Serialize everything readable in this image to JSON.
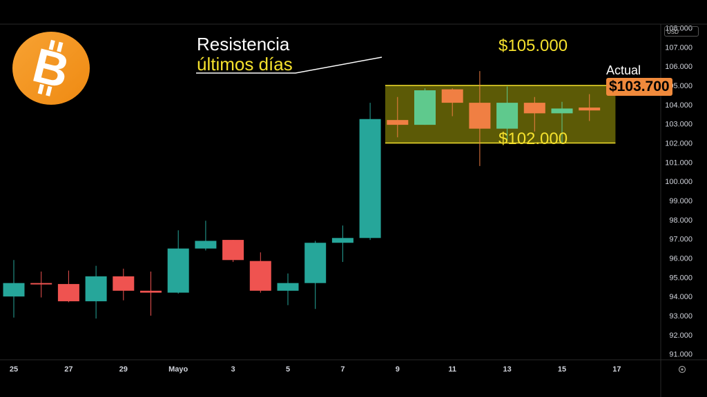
{
  "annotation": {
    "line1": "Resistencia",
    "line2": "últimos días"
  },
  "levels": {
    "upper_label": "$105.000",
    "lower_label": "$102.000",
    "upper": 105000,
    "lower": 102000
  },
  "current": {
    "label": "Actual",
    "value_label": "$103.700",
    "value": 103700
  },
  "currency_selector": "USD",
  "logo": "bitcoin-icon",
  "settings_icon": "gear-icon",
  "colors": {
    "up": "#26a69a",
    "down": "#ef5350",
    "up_light": "#5fc98d",
    "down_light": "#f07f43",
    "zone_fill": "#5c5a06",
    "zone_line": "#f5e12d",
    "accent": "#f08a3c"
  },
  "chart_data": {
    "type": "candlestick",
    "ylim": [
      90700,
      108200
    ],
    "y_ticks": [
      91000,
      92000,
      93000,
      94000,
      95000,
      96000,
      97000,
      98000,
      99000,
      100000,
      101000,
      102000,
      103000,
      104000,
      105000,
      106000,
      107000,
      108000
    ],
    "y_tick_labels": [
      "91.000",
      "92.000",
      "93.000",
      "94.000",
      "95.000",
      "96.000",
      "97.000",
      "98.000",
      "99.000",
      "100.000",
      "101.000",
      "102.000",
      "103.000",
      "104.000",
      "105.000",
      "106.000",
      "107.000",
      "108.000"
    ],
    "x_tick_labels": [
      "25",
      "27",
      "29",
      "Mayo",
      "3",
      "5",
      "7",
      "9",
      "11",
      "13",
      "15",
      "17"
    ],
    "x_tick_days": [
      0,
      2,
      4,
      6,
      8,
      10,
      12,
      14,
      16,
      18,
      20,
      22
    ],
    "candles": [
      {
        "day": 0,
        "open": 94000,
        "high": 95900,
        "low": 92900,
        "close": 94700
      },
      {
        "day": 1,
        "open": 94700,
        "high": 95300,
        "low": 93950,
        "close": 94650
      },
      {
        "day": 2,
        "open": 94650,
        "high": 95350,
        "low": 93700,
        "close": 93750
      },
      {
        "day": 3,
        "open": 93750,
        "high": 95600,
        "low": 92850,
        "close": 95050
      },
      {
        "day": 4,
        "open": 95050,
        "high": 95450,
        "low": 93800,
        "close": 94300
      },
      {
        "day": 5,
        "open": 94300,
        "high": 95300,
        "low": 93000,
        "close": 94200
      },
      {
        "day": 6,
        "open": 94200,
        "high": 97450,
        "low": 94150,
        "close": 96500
      },
      {
        "day": 7,
        "open": 96500,
        "high": 97950,
        "low": 96400,
        "close": 96900
      },
      {
        "day": 8,
        "open": 96950,
        "high": 96950,
        "low": 95800,
        "close": 95900
      },
      {
        "day": 9,
        "open": 95850,
        "high": 96300,
        "low": 94200,
        "close": 94300
      },
      {
        "day": 10,
        "open": 94300,
        "high": 95200,
        "low": 93550,
        "close": 94700
      },
      {
        "day": 11,
        "open": 94700,
        "high": 96900,
        "low": 93350,
        "close": 96800
      },
      {
        "day": 12,
        "open": 96800,
        "high": 97700,
        "low": 95800,
        "close": 97050
      },
      {
        "day": 13,
        "open": 97050,
        "high": 104100,
        "low": 96950,
        "close": 103250
      },
      {
        "day": 14,
        "open": 103200,
        "high": 104400,
        "low": 102300,
        "close": 102950
      },
      {
        "day": 15,
        "open": 102950,
        "high": 104850,
        "low": 102950,
        "close": 104750
      },
      {
        "day": 16,
        "open": 104800,
        "high": 104850,
        "low": 103400,
        "close": 104100
      },
      {
        "day": 17,
        "open": 104100,
        "high": 105750,
        "low": 100800,
        "close": 102750
      },
      {
        "day": 18,
        "open": 102750,
        "high": 104950,
        "low": 102150,
        "close": 104100
      },
      {
        "day": 19,
        "open": 104100,
        "high": 104400,
        "low": 102600,
        "close": 103550
      },
      {
        "day": 20,
        "open": 103550,
        "high": 104150,
        "low": 102000,
        "close": 103800
      },
      {
        "day": 21,
        "open": 103850,
        "high": 104550,
        "low": 103150,
        "close": 103700
      }
    ],
    "zone": {
      "from_day": 13.55,
      "to_day": 21.95,
      "low": 102000,
      "high": 105000
    },
    "grid": false
  }
}
